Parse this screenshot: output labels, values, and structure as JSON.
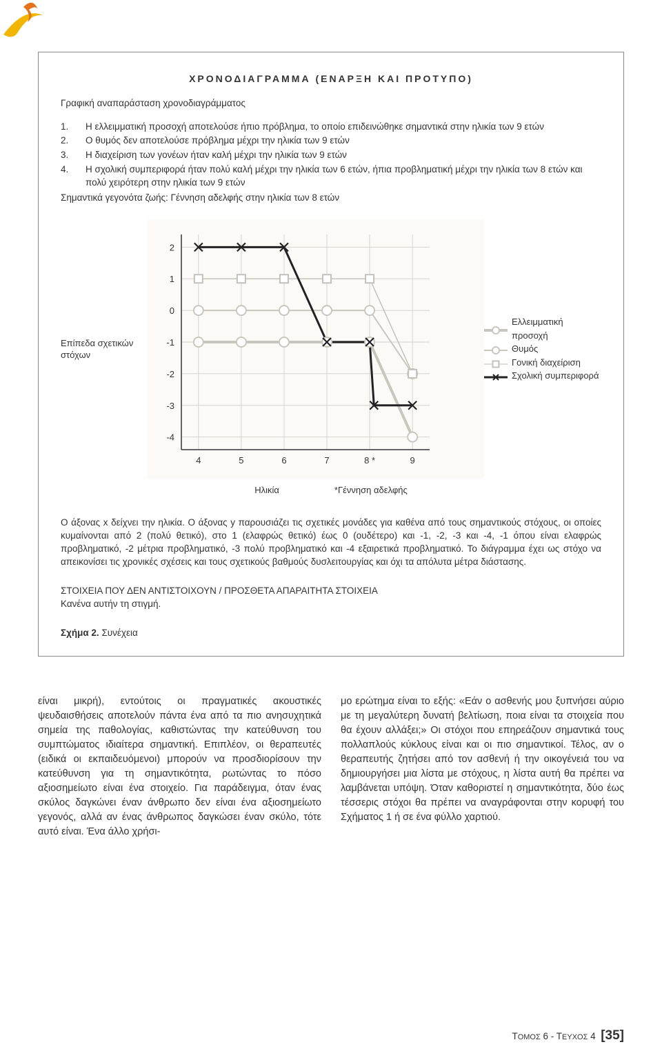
{
  "logo_colors": {
    "yellow": "#f2b600",
    "orange": "#e4731a"
  },
  "box": {
    "title": "ΧΡΟΝΟΔΙΑΓΡΑΜΜΑ (ΕΝΑΡΞΗ ΚΑΙ ΠΡΟΤΥΠΟ)",
    "subtitle": "Γραφική αναπαράσταση χρονοδιαγράμματος",
    "items": [
      {
        "n": "1.",
        "t": "Η ελλειμματική προσοχή αποτελούσε ήπιο πρόβλημα, το οποίο επιδεινώθηκε σημαντικά στην ηλικία των 9 ετών"
      },
      {
        "n": "2.",
        "t": "Ο θυμός δεν αποτελούσε πρόβλημα μέχρι την ηλικία των 9 ετών"
      },
      {
        "n": "3.",
        "t": "Η διαχείριση των γονέων ήταν καλή μέχρι την ηλικία των 9 ετών"
      },
      {
        "n": "4.",
        "t": "Η σχολική συμπεριφορά ήταν πολύ καλή μέχρι την ηλικία των 6 ετών, ήπια προβληματική μέχρι την ηλικία των 8 ετών και πολύ χειρότερη στην ηλικία των 9 ετών"
      }
    ],
    "life_event": "Σημαντικά γεγονότα ζωής: Γέννηση αδελφής στην ηλικία των 8 ετών",
    "y_label": "Επίπεδα σχετικών στόχων",
    "legend": [
      {
        "label": "Ελλειμματική προσοχή",
        "marker": "circle",
        "color": "#c9c6bf",
        "weight": 4
      },
      {
        "label": "Θυμός",
        "marker": "circle",
        "color": "#c9c6bf",
        "weight": 2
      },
      {
        "label": "Γονική διαχείριση",
        "marker": "square",
        "color": "#c4c1ba",
        "weight": 1
      },
      {
        "label": "Σχολική συμπεριφορά",
        "marker": "x",
        "color": "#222222",
        "weight": 3
      }
    ],
    "x_axis_label": "Ηλικία",
    "x_note": "*Γέννηση αδελφής",
    "explain": "Ο άξονας x δείχνει την ηλικία. Ο άξονας y παρουσιάζει τις σχετικές μονάδες για καθένα από τους σημαντικούς στόχους, οι οποίες κυμαίνονται από 2 (πολύ θετικό), στο 1 (ελαφρώς θετικό) έως 0 (ουδέτερο) και -1, -2, -3 και -4, -1 όπου είναι ελαφρώς προβληματικό, -2 μέτρια προβληματικό, -3 πολύ προβληματικό και -4 εξαιρετικά προβληματικό. Το διάγραμμα έχει ως στόχο να απεικονίσει τις χρονικές σχέσεις και τους σχετικούς βαθμούς δυσλειτουργίας και όχι τα απόλυτα μέτρα διάστασης.",
    "section2_title": "ΣΤΟΙΧΕΙΑ ΠΟΥ ΔΕΝ ΑΝΤΙΣΤΟΙΧΟΥΝ / ΠΡΟΣΘΕΤΑ  ΑΠΑΡΑΙΤΗΤΑ ΣΤΟΙΧΕΙΑ",
    "section2_body": "Κανένα αυτήν τη στιγμή.",
    "fig_bold": "Σχήμα 2.",
    "fig_rest": " Συνέχεια"
  },
  "chart": {
    "type": "line",
    "background_color": "#fbfaf6",
    "grid_color": "#d6d3cb",
    "axis_color": "#333333",
    "tick_font_size": 13,
    "x_ticks": [
      4,
      5,
      6,
      7,
      8,
      9
    ],
    "star_after_tick": 8,
    "y_ticks": [
      2,
      1,
      0,
      -1,
      -2,
      -3,
      -4
    ],
    "xlim": [
      3.6,
      9.4
    ],
    "ylim": [
      -4.4,
      2.4
    ],
    "series": [
      {
        "name": "attention",
        "marker": "circle",
        "color": "#c9c6bf",
        "weight": 4,
        "points": [
          [
            4,
            -1
          ],
          [
            5,
            -1
          ],
          [
            6,
            -1
          ],
          [
            7,
            -1
          ],
          [
            8,
            -1
          ],
          [
            9,
            -4
          ]
        ]
      },
      {
        "name": "anger",
        "marker": "circle",
        "color": "#c9c6bf",
        "weight": 2,
        "points": [
          [
            4,
            0
          ],
          [
            5,
            0
          ],
          [
            6,
            0
          ],
          [
            7,
            0
          ],
          [
            8,
            0
          ],
          [
            9,
            -2
          ]
        ]
      },
      {
        "name": "parenting",
        "marker": "square",
        "color": "#c4c1ba",
        "weight": 1.5,
        "points": [
          [
            4,
            1
          ],
          [
            5,
            1
          ],
          [
            6,
            1
          ],
          [
            7,
            1
          ],
          [
            8,
            1
          ],
          [
            9,
            -2
          ]
        ]
      },
      {
        "name": "school",
        "marker": "x",
        "color": "#222222",
        "weight": 3,
        "points": [
          [
            4,
            2
          ],
          [
            5,
            2
          ],
          [
            6,
            2
          ],
          [
            7,
            -1
          ],
          [
            8,
            -1
          ],
          [
            8.1,
            -3
          ],
          [
            9,
            -3
          ]
        ]
      }
    ]
  },
  "columns": {
    "left": "είναι μικρή), εντούτοις οι πραγματικές ακουστικές ψευδαισθήσεις αποτελούν πάντα ένα από τα πιο ανησυχητικά σημεία της παθολογίας, καθιστώντας την κατεύθυνση του συμπτώματος ιδιαίτερα σημαντική. Επιπλέον, οι θεραπευτές (ειδικά οι εκπαιδευόμενοι) μπορούν να προσδιορίσουν την κατεύθυνση για τη σημαντικότητα, ρωτώντας το πόσο αξιοσημείωτο είναι ένα στοιχείο. Για παράδειγμα, όταν ένας σκύλος δαγκώνει έναν άνθρωπο δεν είναι ένα αξιοσημείωτο γεγονός, αλλά αν ένας άνθρωπος δαγκώσει έναν σκύλο, τότε αυτό είναι. Ένα άλλο χρήσι-",
    "right": "μο ερώτημα είναι το εξής: «Εάν ο ασθενής μου ξυπνήσει αύριο με τη μεγαλύτερη δυνατή βελτίωση, ποια είναι τα στοιχεία που θα έχουν αλλάξει;» Οι στόχοι που επηρεάζουν σημαντικά τους πολλαπλούς κύκλους είναι και οι πιο σημαντικοί. Τέλος, αν ο θεραπευτής  ζητήσει από τον ασθενή ή την οικογένειά του να δημιουργήσει μια λίστα με στόχους, η λίστα αυτή θα πρέπει να λαμβάνεται υπόψη. Όταν καθοριστεί η σημαντικότητα, δύο έως τέσσερις στόχοι θα πρέπει να αναγράφονται στην κορυφή του Σχήματος 1 ή σε ένα φύλλο χαρτιού."
  },
  "footer": {
    "prefix": "Τ",
    "small": "ΟΜΟΣ",
    "vol": " 6 - Τ",
    "small2": "ΕΥΧΟΣ",
    "issue": " 4",
    "page_open": "[",
    "page": "35",
    "page_close": "]"
  }
}
